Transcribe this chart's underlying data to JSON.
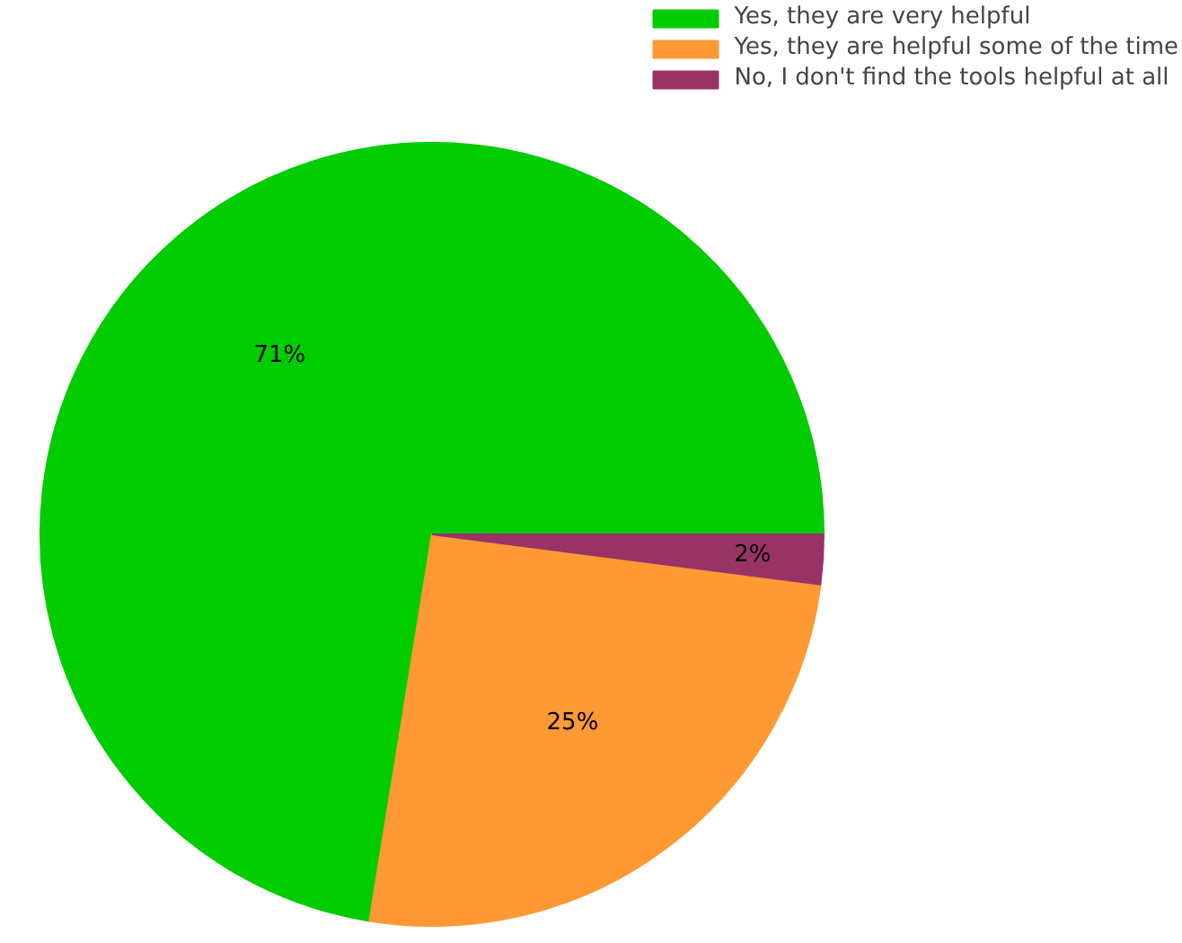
{
  "chart_data": {
    "type": "pie",
    "categories": [
      "Yes, they are very helpful",
      "Yes, they are helpful some of the time",
      "No, I don't find the tools helpful at all"
    ],
    "values": [
      71,
      25,
      2
    ],
    "value_labels": [
      "71%",
      "25%",
      "2%"
    ],
    "colors": [
      "#00cc00",
      "#ff9933",
      "#993366"
    ],
    "legend": "top right"
  }
}
